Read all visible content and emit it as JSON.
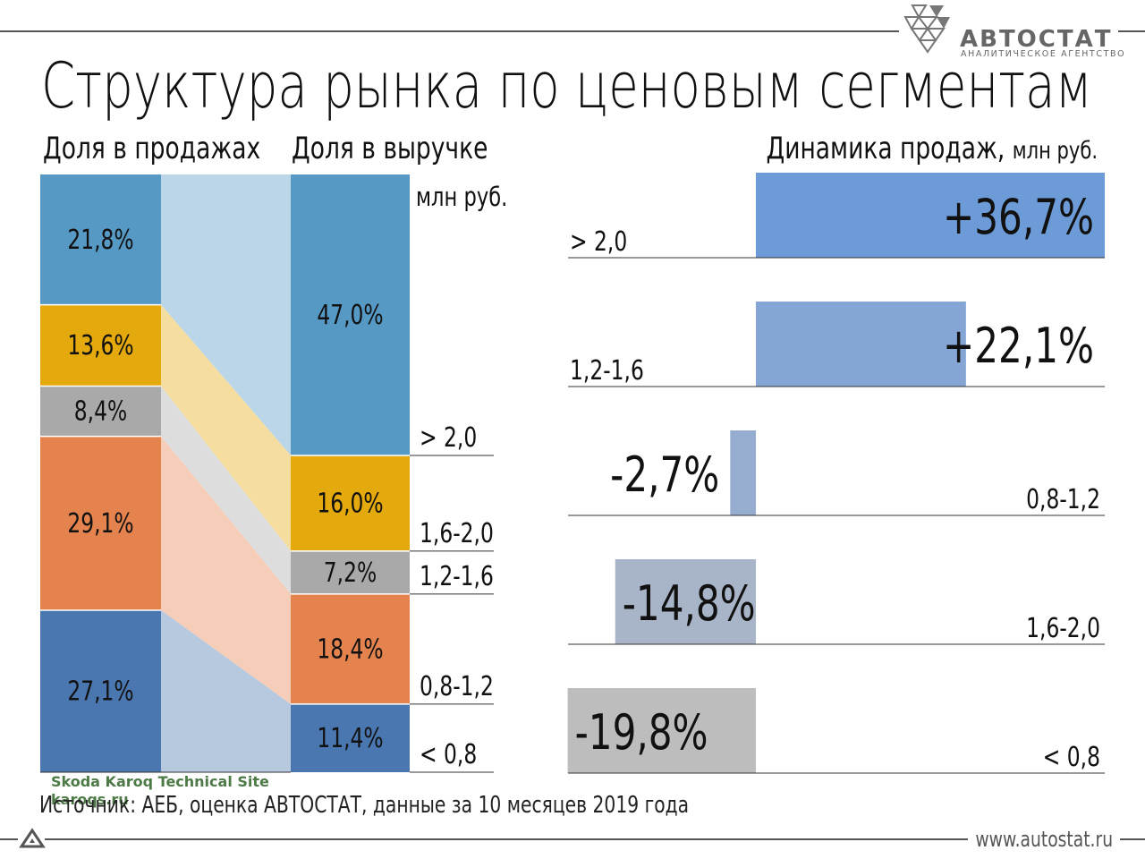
{
  "title": "Структура рынка по ценовым сегментам",
  "headers": {
    "sales_share": "Доля в продажах",
    "revenue_share": "Доля в выручке",
    "dynamics": "Динамика продаж,",
    "dynamics_unit": "млн руб."
  },
  "unit_label": "млн руб.",
  "source": "Источник: АЕБ, оценка АВТОСТАТ, данные за 10 месяцев 2019 года",
  "watermark": [
    "Skoda Karoq Technical Site",
    "karoqs.ru"
  ],
  "site_url": "www.autostat.ru",
  "brand": {
    "name": "АВТОСТАТ",
    "tagline": "АНАЛИТИЧЕСКОЕ АГЕНТСТВО"
  },
  "colors": {
    "seg_gt2": "#5699c5",
    "seg_16_20": "#e3a90d",
    "seg_12_16": "#a9a9a9",
    "seg_08_12": "#e5834e",
    "seg_lt08": "#4b77b0",
    "dyn_gt2": "#6d9bd7",
    "dyn_12_16": "#85a6d5",
    "dyn_08_12": "#97add0",
    "dyn_16_20": "#a8b5c9",
    "dyn_lt08": "#bdbdbd"
  },
  "chart_data": [
    {
      "type": "bar",
      "stacked": true,
      "title": "Доля в продажах / Доля в выручке",
      "categories": [
        "> 2,0",
        "1,6-2,0",
        "1,2-1,6",
        "0,8-1,2",
        "< 0,8"
      ],
      "series": [
        {
          "name": "Доля в продажах",
          "values": [
            21.8,
            13.6,
            8.4,
            29.1,
            27.1
          ],
          "labels": [
            "21,8%",
            "13,6%",
            "8,4%",
            "29,1%",
            "27,1%"
          ]
        },
        {
          "name": "Доля в выручке",
          "values": [
            47.0,
            16.0,
            7.2,
            18.4,
            11.4
          ],
          "labels": [
            "47,0%",
            "16,0%",
            "7,2%",
            "18,4%",
            "11,4%"
          ]
        }
      ],
      "ylim": [
        0,
        100
      ]
    },
    {
      "type": "bar",
      "orientation": "horizontal",
      "title": "Динамика продаж, млн руб.",
      "categories": [
        "> 2,0",
        "1,2-1,6",
        "0,8-1,2",
        "1,6-2,0",
        "< 0,8"
      ],
      "values": [
        36.7,
        22.1,
        -2.7,
        -14.8,
        -19.8
      ],
      "labels": [
        "+36,7%",
        "+22,1%",
        "-2,7%",
        "-14,8%",
        "-19,8%"
      ]
    }
  ]
}
